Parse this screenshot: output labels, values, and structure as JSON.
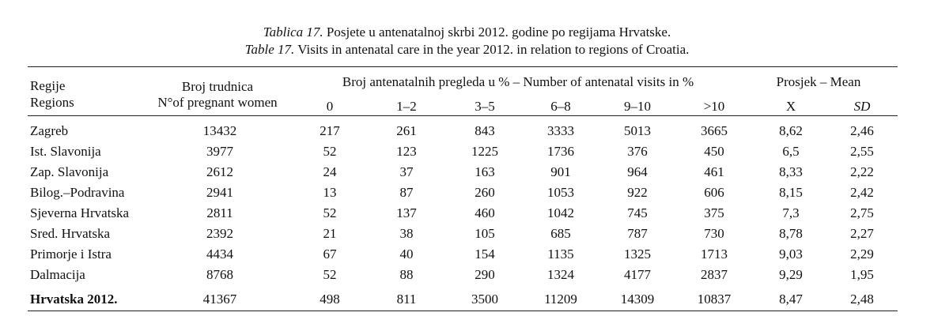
{
  "caption": {
    "hr_label": "Tablica 17.",
    "hr_text": " Posjete u antenatalnoj skrbi 2012. godine po regijama Hrvatske.",
    "en_label": "Table 17.",
    "en_text": " Visits in antenatal care in the year 2012. in relation to regions of Croatia."
  },
  "header": {
    "region_hr": "Regije",
    "region_en": "Regions",
    "pregnant_hr": "Broj trudnica",
    "pregnant_en": "N°of pregnant women",
    "visits_group": "Broj antenatalnih pregleda u % – Number of antenatal visits in %",
    "mean_group": "Prosjek – Mean",
    "bins": [
      "0",
      "1–2",
      "3–5",
      "6–8",
      "9–10",
      ">10"
    ],
    "x_label": "X",
    "sd_label": "SD"
  },
  "rows": [
    {
      "region": "Zagreb",
      "pregnant": "13432",
      "v0": "217",
      "v12": "261",
      "v35": "843",
      "v68": "3333",
      "v910": "5013",
      "v10p": "3665",
      "x": "8,62",
      "sd": "2,46"
    },
    {
      "region": "Ist. Slavonija",
      "pregnant": "3977",
      "v0": "52",
      "v12": "123",
      "v35": "1225",
      "v68": "1736",
      "v910": "376",
      "v10p": "450",
      "x": "6,5",
      "sd": "2,55"
    },
    {
      "region": "Zap. Slavonija",
      "pregnant": "2612",
      "v0": "24",
      "v12": "37",
      "v35": "163",
      "v68": "901",
      "v910": "964",
      "v10p": "461",
      "x": "8,33",
      "sd": "2,22"
    },
    {
      "region": "Bilog.–Podravina",
      "pregnant": "2941",
      "v0": "13",
      "v12": "87",
      "v35": "260",
      "v68": "1053",
      "v910": "922",
      "v10p": "606",
      "x": "8,15",
      "sd": "2,42"
    },
    {
      "region": "Sjeverna Hrvatska",
      "pregnant": "2811",
      "v0": "52",
      "v12": "137",
      "v35": "460",
      "v68": "1042",
      "v910": "745",
      "v10p": "375",
      "x": "7,3",
      "sd": "2,75"
    },
    {
      "region": "Sred. Hrvatska",
      "pregnant": "2392",
      "v0": "21",
      "v12": "38",
      "v35": "105",
      "v68": "685",
      "v910": "787",
      "v10p": "730",
      "x": "8,78",
      "sd": "2,27"
    },
    {
      "region": "Primorje i Istra",
      "pregnant": "4434",
      "v0": "67",
      "v12": "40",
      "v35": "154",
      "v68": "1135",
      "v910": "1325",
      "v10p": "1713",
      "x": "9,03",
      "sd": "2,29"
    },
    {
      "region": "Dalmacija",
      "pregnant": "8768",
      "v0": "52",
      "v12": "88",
      "v35": "290",
      "v68": "1324",
      "v910": "4177",
      "v10p": "2837",
      "x": "9,29",
      "sd": "1,95"
    }
  ],
  "total": {
    "region": "Hrvatska 2012.",
    "pregnant": "41367",
    "v0": "498",
    "v12": "811",
    "v35": "3500",
    "v68": "11209",
    "v910": "14309",
    "v10p": "10837",
    "x": "8,47",
    "sd": "2,48"
  }
}
